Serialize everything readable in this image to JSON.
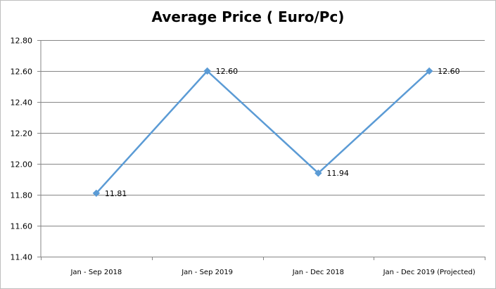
{
  "chart_data": {
    "type": "line",
    "title": "Average Price ( Euro/Pc)",
    "xlabel": "",
    "ylabel": "",
    "categories": [
      "Jan - Sep 2018",
      "Jan - Sep 2019",
      "Jan - Dec 2018",
      "Jan - Dec 2019 (Projected)"
    ],
    "series": [
      {
        "values": [
          11.81,
          12.6,
          11.94,
          12.6
        ],
        "labels": [
          "11.81",
          "12.60",
          "11.94",
          "12.60"
        ],
        "color": "#5b9bd5"
      }
    ],
    "ylim": [
      11.4,
      12.8
    ],
    "yticks": [
      "11.40",
      "11.60",
      "11.80",
      "12.00",
      "12.20",
      "12.40",
      "12.60",
      "12.80"
    ],
    "ytick_values": [
      11.4,
      11.6,
      11.8,
      12.0,
      12.2,
      12.4,
      12.6,
      12.8
    ],
    "grid": true,
    "legend": "none"
  }
}
